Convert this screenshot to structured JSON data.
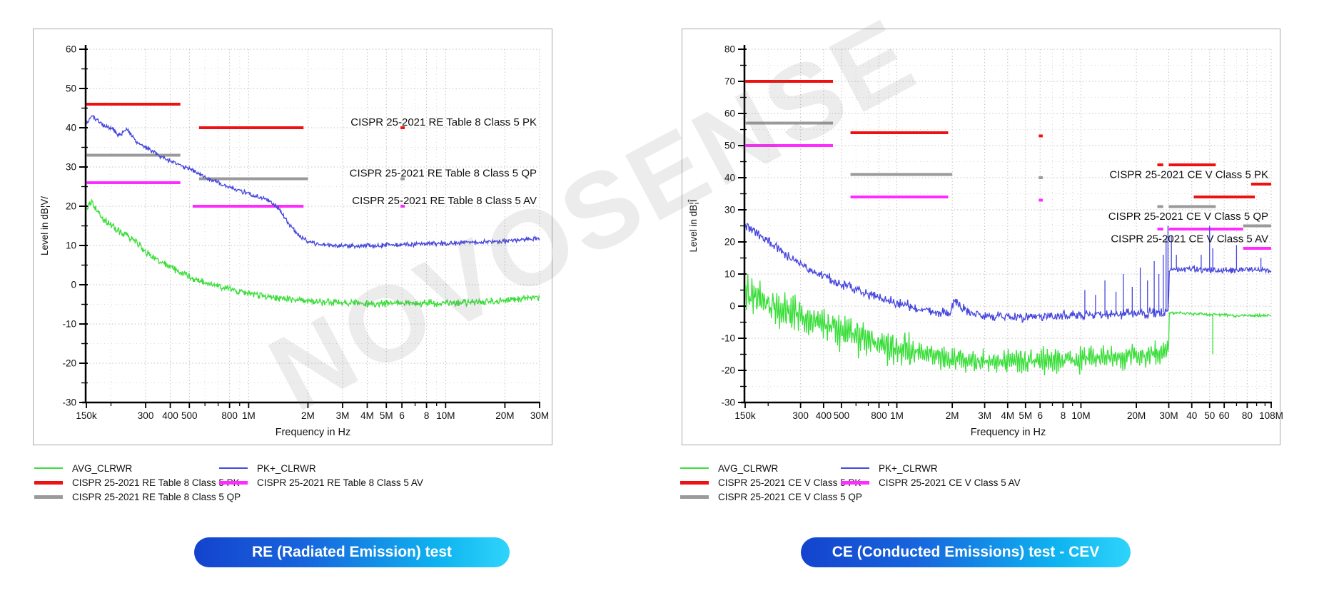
{
  "watermark": {
    "text": "NOVOSENSE"
  },
  "colors": {
    "trace_avg": "#3ade3a",
    "trace_pk": "#4747dd",
    "limit_pk": "#ee1111",
    "limit_qp": "#9a9a9a",
    "limit_av": "#ff2cff",
    "caption_gradient_start": "#1443cd",
    "caption_gradient_end": "#2fd4fb"
  },
  "chart_data": [
    {
      "type": "line",
      "caption": "RE (Radiated Emission) test",
      "xlabel": "Frequency in Hz",
      "ylabel": "Level in dB¦V/",
      "x_unit": "MHz",
      "x_scale": "log",
      "x_min": 0.15,
      "x_max": 30,
      "y_min": -30,
      "y_max": 60,
      "y_tick_step": 10,
      "y_minor_step": 5,
      "grid": "dotted",
      "x_ticks": [
        {
          "f": 0.15,
          "l": "150k"
        },
        {
          "f": 0.3,
          "l": "300"
        },
        {
          "f": 0.4,
          "l": "400"
        },
        {
          "f": 0.5,
          "l": "500"
        },
        {
          "f": 0.8,
          "l": "800"
        },
        {
          "f": 1,
          "l": "1M"
        },
        {
          "f": 2,
          "l": "2M"
        },
        {
          "f": 3,
          "l": "3M"
        },
        {
          "f": 4,
          "l": "4M"
        },
        {
          "f": 5,
          "l": "5M"
        },
        {
          "f": 6,
          "l": "6"
        },
        {
          "f": 8,
          "l": "8"
        },
        {
          "f": 10,
          "l": "10M"
        },
        {
          "f": 20,
          "l": "20M"
        },
        {
          "f": 30,
          "l": "30M"
        }
      ],
      "limits": [
        {
          "name": "CISPR 25-2021 RE Table 8 Class 5 PK",
          "color": "#ee1111",
          "segments": [
            [
              0.15,
              0.45,
              46
            ],
            [
              0.56,
              1.9,
              40
            ],
            [
              5.9,
              6.2,
              40
            ]
          ]
        },
        {
          "name": "CISPR 25-2021 RE Table 8 Class 5 QP",
          "color": "#9a9a9a",
          "segments": [
            [
              0.15,
              0.45,
              33
            ],
            [
              0.56,
              2.0,
              27
            ],
            [
              5.9,
              6.2,
              27
            ]
          ]
        },
        {
          "name": "CISPR 25-2021 RE Table 8 Class 5 AV",
          "color": "#ff2cff",
          "segments": [
            [
              0.15,
              0.45,
              26
            ],
            [
              0.52,
              1.9,
              20
            ],
            [
              5.9,
              6.2,
              20
            ]
          ]
        }
      ],
      "annotations": [
        {
          "text": "CISPR 25-2021 RE Table 8 Class 5 PK",
          "color": "#ee1111",
          "level": 41.5
        },
        {
          "text": "CISPR 25-2021 RE Table 8 Class 5 QP",
          "color": "#9a9a9a",
          "level": 28.5
        },
        {
          "text": "CISPR 25-2021 RE Table 8 Class 5 AV",
          "color": "#ff2cff",
          "level": 21.5
        }
      ],
      "traces": [
        {
          "name": "AVG_CLRWR",
          "color": "#3ade3a",
          "noise": [
            {
              "to": 30,
              "amp": 1.1
            }
          ],
          "points": [
            [
              0.15,
              19
            ],
            [
              0.16,
              21
            ],
            [
              0.18,
              17
            ],
            [
              0.2,
              15
            ],
            [
              0.23,
              13
            ],
            [
              0.26,
              11.5
            ],
            [
              0.3,
              8.5
            ],
            [
              0.35,
              6
            ],
            [
              0.4,
              4.5
            ],
            [
              0.5,
              2
            ],
            [
              0.6,
              0.5
            ],
            [
              0.7,
              -0.5
            ],
            [
              0.85,
              -1.5
            ],
            [
              1,
              -2.2
            ],
            [
              1.3,
              -3.2
            ],
            [
              1.7,
              -3.8
            ],
            [
              2,
              -4.2
            ],
            [
              3,
              -4.6
            ],
            [
              4.5,
              -4.8
            ],
            [
              7,
              -4.7
            ],
            [
              10,
              -4.6
            ],
            [
              14,
              -4.4
            ],
            [
              20,
              -4
            ],
            [
              25,
              -3.6
            ],
            [
              30,
              -3.1
            ]
          ]
        },
        {
          "name": "PK+_CLRWR",
          "color": "#4747dd",
          "noise": [
            {
              "to": 30,
              "amp": 0.7
            }
          ],
          "points": [
            [
              0.15,
              41
            ],
            [
              0.16,
              43
            ],
            [
              0.18,
              41
            ],
            [
              0.2,
              40
            ],
            [
              0.22,
              38
            ],
            [
              0.24,
              39.5
            ],
            [
              0.27,
              36.5
            ],
            [
              0.3,
              35
            ],
            [
              0.35,
              33
            ],
            [
              0.4,
              31.5
            ],
            [
              0.5,
              29.5
            ],
            [
              0.6,
              27.5
            ],
            [
              0.7,
              26
            ],
            [
              0.8,
              24.8
            ],
            [
              0.9,
              24
            ],
            [
              1,
              23.2
            ],
            [
              1.15,
              22.2
            ],
            [
              1.3,
              21
            ],
            [
              1.45,
              19
            ],
            [
              1.6,
              15.5
            ],
            [
              1.8,
              12.5
            ],
            [
              2,
              11
            ],
            [
              2.3,
              10.2
            ],
            [
              2.7,
              10
            ],
            [
              3.5,
              9.9
            ],
            [
              5,
              10.1
            ],
            [
              7,
              10.3
            ],
            [
              10,
              10.5
            ],
            [
              14,
              10.8
            ],
            [
              20,
              11.1
            ],
            [
              25,
              11.5
            ],
            [
              30,
              11.8
            ]
          ]
        }
      ],
      "legend_col1": [
        {
          "label": "AVG_CLRWR",
          "color": "#3ade3a",
          "thick": false
        },
        {
          "label": "CISPR 25-2021 RE Table 8 Class 5 PK",
          "color": "#ee1111",
          "thick": true
        },
        {
          "label": "CISPR 25-2021 RE Table 8 Class 5 QP",
          "color": "#9a9a9a",
          "thick": true
        }
      ],
      "legend_col2": [
        {
          "label": "PK+_CLRWR",
          "color": "#4747dd",
          "thick": false
        },
        {
          "label": "CISPR 25-2021 RE Table 8 Class 5 AV",
          "color": "#ff2cff",
          "thick": true
        }
      ]
    },
    {
      "type": "line",
      "caption": "CE (Conducted Emissions) test - CEV",
      "xlabel": "Frequency in Hz",
      "ylabel": "Level in dB¦Î",
      "x_unit": "MHz",
      "x_scale": "log",
      "x_min": 0.15,
      "x_max": 108,
      "y_min": -30,
      "y_max": 80,
      "y_tick_step": 10,
      "y_minor_step": 5,
      "grid": "dotted",
      "x_ticks": [
        {
          "f": 0.15,
          "l": "150k"
        },
        {
          "f": 0.3,
          "l": "300"
        },
        {
          "f": 0.4,
          "l": "400"
        },
        {
          "f": 0.5,
          "l": "500"
        },
        {
          "f": 0.8,
          "l": "800"
        },
        {
          "f": 1,
          "l": "1M"
        },
        {
          "f": 2,
          "l": "2M"
        },
        {
          "f": 3,
          "l": "3M"
        },
        {
          "f": 4,
          "l": "4M"
        },
        {
          "f": 5,
          "l": "5M"
        },
        {
          "f": 6,
          "l": "6"
        },
        {
          "f": 8,
          "l": "8"
        },
        {
          "f": 10,
          "l": "10M"
        },
        {
          "f": 20,
          "l": "20M"
        },
        {
          "f": 30,
          "l": "30M"
        },
        {
          "f": 40,
          "l": "40"
        },
        {
          "f": 50,
          "l": "50"
        },
        {
          "f": 60,
          "l": "60"
        },
        {
          "f": 80,
          "l": "80"
        },
        {
          "f": 108,
          "l": "108M"
        }
      ],
      "limits": [
        {
          "name": "CISPR 25-2021 CE V Class 5 PK",
          "color": "#ee1111",
          "segments": [
            [
              0.15,
              0.45,
              70
            ],
            [
              0.56,
              1.9,
              54
            ],
            [
              5.9,
              6.2,
              53
            ],
            [
              26,
              28,
              44
            ],
            [
              30,
              54,
              44
            ],
            [
              41,
              88,
              34
            ],
            [
              84,
              108,
              38
            ]
          ]
        },
        {
          "name": "CISPR 25-2021 CE V Class 5 QP",
          "color": "#9a9a9a",
          "segments": [
            [
              0.15,
              0.45,
              57
            ],
            [
              0.56,
              2.0,
              41
            ],
            [
              5.9,
              6.2,
              40
            ],
            [
              26,
              28,
              31
            ],
            [
              30,
              54,
              31
            ],
            [
              76,
              108,
              25
            ]
          ]
        },
        {
          "name": "CISPR 25-2021 CE V Class 5 AV",
          "color": "#ff2cff",
          "segments": [
            [
              0.15,
              0.45,
              50
            ],
            [
              0.56,
              1.9,
              34
            ],
            [
              5.9,
              6.2,
              33
            ],
            [
              26,
              28,
              24
            ],
            [
              30,
              76,
              24
            ],
            [
              76,
              108,
              18
            ]
          ]
        }
      ],
      "annotations": [
        {
          "text": "CISPR 25-2021 CE V Class 5 PK",
          "color": "#ee1111",
          "level": 41
        },
        {
          "text": "CISPR 25-2021 CE V Class 5 QP",
          "color": "#9a9a9a",
          "level": 28
        },
        {
          "text": "CISPR 25-2021 CE V Class 5 AV",
          "color": "#ff2cff",
          "level": 21
        }
      ],
      "traces": [
        {
          "name": "AVG_CLRWR",
          "color": "#3ade3a",
          "noise": [
            {
              "to": 1.2,
              "amp": 4.5,
              "comb": true
            },
            {
              "to": 30,
              "amp": 3.0,
              "comb": true
            },
            {
              "to": 108,
              "amp": 0.55
            }
          ],
          "spikes": [
            [
              52,
              -15
            ]
          ],
          "points": [
            [
              0.15,
              4
            ],
            [
              0.2,
              1
            ],
            [
              0.25,
              -1.5
            ],
            [
              0.3,
              -3.5
            ],
            [
              0.4,
              -6
            ],
            [
              0.55,
              -8.5
            ],
            [
              0.75,
              -11
            ],
            [
              1,
              -12.8
            ],
            [
              1.4,
              -14.8
            ],
            [
              2,
              -16.5
            ],
            [
              3,
              -17.2
            ],
            [
              4.5,
              -17.3
            ],
            [
              7,
              -16.8
            ],
            [
              10,
              -16.3
            ],
            [
              15,
              -16
            ],
            [
              20,
              -15.3
            ],
            [
              26,
              -14.6
            ],
            [
              29.9,
              -14
            ],
            [
              30.1,
              -2
            ],
            [
              36,
              -2.2
            ],
            [
              50,
              -2.6
            ],
            [
              70,
              -2.9
            ],
            [
              90,
              -3
            ],
            [
              108,
              -2.8
            ]
          ]
        },
        {
          "name": "PK+_CLRWR",
          "color": "#4747dd",
          "noise": [
            {
              "to": 30,
              "amp": 1.8
            },
            {
              "to": 108,
              "amp": 1.2
            }
          ],
          "spikes": [
            [
              10.5,
              5
            ],
            [
              12,
              3.5
            ],
            [
              13.5,
              8
            ],
            [
              15.5,
              4.5
            ],
            [
              17,
              10
            ],
            [
              19,
              6
            ],
            [
              21,
              12
            ],
            [
              23,
              8
            ],
            [
              25,
              14
            ],
            [
              26.5,
              10
            ],
            [
              28,
              16
            ],
            [
              29,
              21
            ],
            [
              29.7,
              25
            ],
            [
              31,
              22
            ],
            [
              33,
              16
            ],
            [
              45,
              16
            ],
            [
              50,
              25
            ],
            [
              52,
              18
            ],
            [
              70,
              19
            ],
            [
              95,
              15
            ]
          ],
          "points": [
            [
              0.15,
              25
            ],
            [
              0.17,
              23
            ],
            [
              0.2,
              20
            ],
            [
              0.25,
              16
            ],
            [
              0.3,
              13
            ],
            [
              0.4,
              9.5
            ],
            [
              0.5,
              7
            ],
            [
              0.7,
              3.5
            ],
            [
              0.9,
              1.8
            ],
            [
              1.1,
              0.5
            ],
            [
              1.4,
              -1.2
            ],
            [
              1.7,
              -2.2
            ],
            [
              1.95,
              -2
            ],
            [
              2.05,
              1.8
            ],
            [
              2.2,
              0.5
            ],
            [
              2.5,
              -2
            ],
            [
              3,
              -3.2
            ],
            [
              4,
              -3.4
            ],
            [
              5.5,
              -3.2
            ],
            [
              8,
              -3
            ],
            [
              11,
              -2.8
            ],
            [
              15,
              -2.6
            ],
            [
              20,
              -2.3
            ],
            [
              26,
              -2
            ],
            [
              29.9,
              -1.6
            ],
            [
              30.1,
              11.8
            ],
            [
              35,
              11.6
            ],
            [
              42,
              11.3
            ],
            [
              55,
              11
            ],
            [
              70,
              11.3
            ],
            [
              85,
              11.5
            ],
            [
              108,
              11
            ]
          ]
        }
      ],
      "legend_col1": [
        {
          "label": "AVG_CLRWR",
          "color": "#3ade3a",
          "thick": false
        },
        {
          "label": "CISPR 25-2021 CE V Class 5 PK",
          "color": "#ee1111",
          "thick": true
        },
        {
          "label": "CISPR 25-2021 CE V Class 5 QP",
          "color": "#9a9a9a",
          "thick": true
        }
      ],
      "legend_col2": [
        {
          "label": "PK+_CLRWR",
          "color": "#4747dd",
          "thick": false
        },
        {
          "label": "CISPR 25-2021 CE V Class 5 AV",
          "color": "#ff2cff",
          "thick": true
        }
      ]
    }
  ]
}
